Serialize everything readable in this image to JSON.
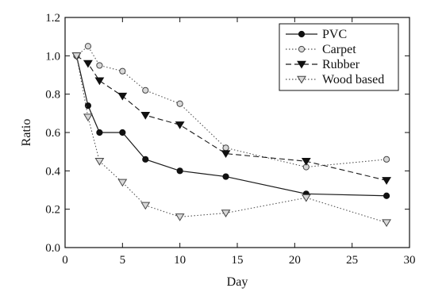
{
  "chart_data": {
    "type": "line",
    "title": "",
    "xlabel": "Day",
    "ylabel": "Ratio",
    "xlim": [
      0,
      30
    ],
    "ylim": [
      0.0,
      1.2
    ],
    "xticks": [
      0,
      5,
      10,
      15,
      20,
      25,
      30
    ],
    "yticks": [
      0.0,
      0.2,
      0.4,
      0.6,
      0.8,
      1.0,
      1.2
    ],
    "grid": false,
    "legend_position": "top-right",
    "series": [
      {
        "name": "PVC",
        "marker": "filled-circle",
        "line_style": "solid",
        "color": "#1a1a1a",
        "x": [
          1,
          2,
          3,
          5,
          7,
          10,
          14,
          21,
          28
        ],
        "y": [
          1.0,
          0.74,
          0.6,
          0.6,
          0.46,
          0.4,
          0.37,
          0.28,
          0.27
        ]
      },
      {
        "name": "Carpet",
        "marker": "open-circle-gray",
        "line_style": "dotted",
        "color": "#555555",
        "x": [
          1,
          2,
          3,
          5,
          7,
          10,
          14,
          21,
          28
        ],
        "y": [
          1.0,
          1.05,
          0.95,
          0.92,
          0.82,
          0.75,
          0.52,
          0.42,
          0.46
        ]
      },
      {
        "name": "Rubber",
        "marker": "filled-triangle-down",
        "line_style": "dashed",
        "color": "#1a1a1a",
        "x": [
          1,
          2,
          3,
          5,
          7,
          10,
          14,
          21,
          28
        ],
        "y": [
          1.0,
          0.96,
          0.87,
          0.79,
          0.69,
          0.64,
          0.49,
          0.45,
          0.35
        ]
      },
      {
        "name": "Wood based",
        "marker": "open-triangle-down-gray",
        "line_style": "dotted",
        "color": "#555555",
        "x": [
          1,
          2,
          3,
          5,
          7,
          10,
          14,
          21,
          28
        ],
        "y": [
          1.0,
          0.68,
          0.45,
          0.34,
          0.22,
          0.16,
          0.18,
          0.26,
          0.13
        ]
      }
    ]
  }
}
